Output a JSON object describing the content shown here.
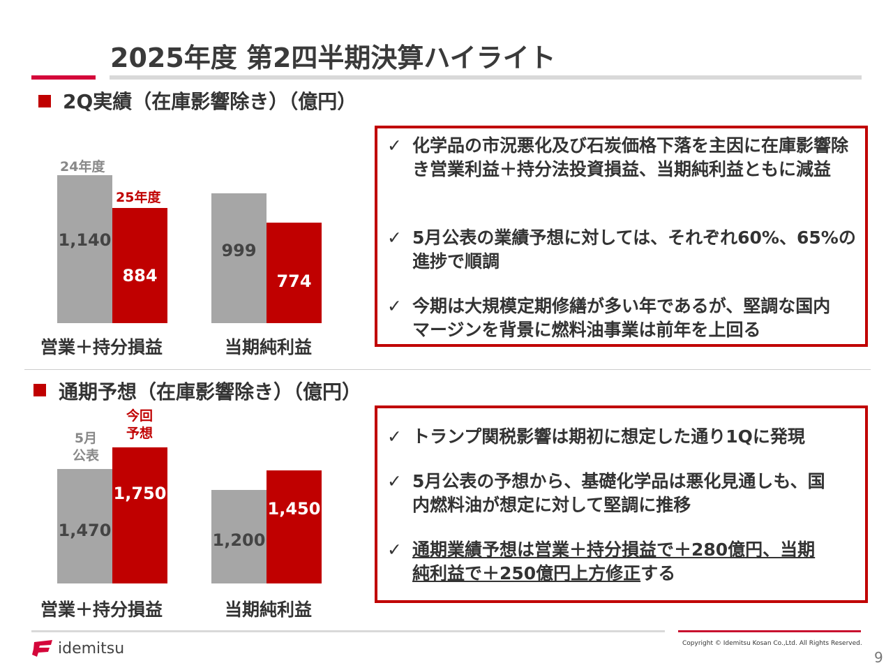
{
  "title": "2025年度 第2四半期決算ハイライト",
  "colors": {
    "accent": "#c00000",
    "gray": "#a6a6a6",
    "rule": "#d9d9d9"
  },
  "section1": {
    "heading": "2Q実績（在庫影響除き）（億円）",
    "points": [
      "化学品の市況悪化及び石炭価格下落を主因に在庫影響除き営業利益＋持分法投資損益、当期純利益ともに減益",
      "5月公表の業績予想に対しては、それぞれ60%、65%の進捗で順調",
      "今期は大規模定期修繕が多い年であるが、堅調な国内マージンを背景に燃料油事業は前年を上回る"
    ]
  },
  "section2": {
    "heading": "通期予想（在庫影響除き）（億円）",
    "points": [
      "トランプ関税影響は期初に想定した通り1Qに発現",
      "5月公表の予想から、基礎化学品は悪化見通しも、国内燃料油が想定に対して堅調に推移"
    ],
    "point3_underlined": "通期業績予想は営業＋持分損益で＋280億円、当期純利益で＋250億円上方修正",
    "point3_tail": "する"
  },
  "chart_data": [
    {
      "type": "bar",
      "categories": [
        "営業＋持分損益",
        "当期純利益"
      ],
      "series": [
        {
          "name": "24年度",
          "values": [
            1140,
            999
          ],
          "labels": [
            "1,140",
            "999"
          ]
        },
        {
          "name": "25年度",
          "values": [
            884,
            774
          ],
          "labels": [
            "884",
            "774"
          ]
        }
      ]
    },
    {
      "type": "bar",
      "categories": [
        "営業＋持分損益",
        "当期純利益"
      ],
      "series": [
        {
          "name": "5月公表",
          "values": [
            1470,
            1200
          ],
          "labels": [
            "1,470",
            "1,200"
          ]
        },
        {
          "name": "今回予想",
          "values": [
            1750,
            1450
          ],
          "labels": [
            "1,750",
            "1,450"
          ]
        }
      ]
    }
  ],
  "legend2": {
    "a1": "5月",
    "a2": "公表",
    "b1": "今回",
    "b2": "予想"
  },
  "check": "✓",
  "footer": {
    "logo": "idemitsu",
    "copyright": "Copyright © Idemitsu Kosan Co.,Ltd.  All Rights Reserved.",
    "page": "9"
  }
}
